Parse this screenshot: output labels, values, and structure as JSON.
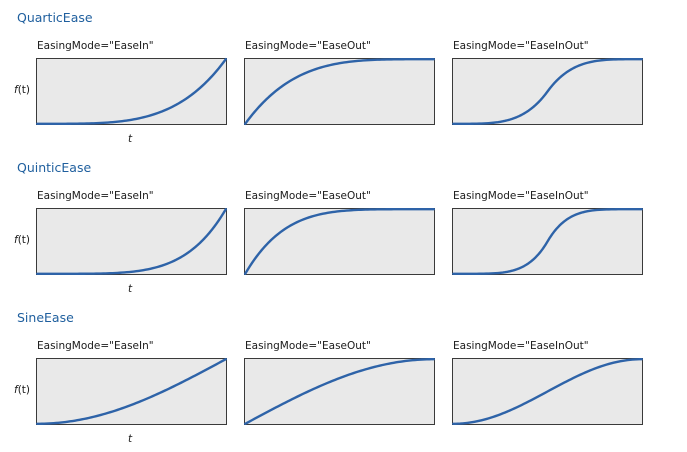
{
  "sections": [
    {
      "title": "QuarticEase",
      "plots": [
        {
          "mode_label": "EasingMode=\"EaseIn\""
        },
        {
          "mode_label": "EasingMode=\"EaseOut\""
        },
        {
          "mode_label": "EasingMode=\"EaseInOut\""
        }
      ],
      "y_label_fn": "f",
      "y_label_arg": "(t)",
      "x_label": "t"
    },
    {
      "title": "QuinticEase",
      "plots": [
        {
          "mode_label": "EasingMode=\"EaseIn\""
        },
        {
          "mode_label": "EasingMode=\"EaseOut\""
        },
        {
          "mode_label": "EasingMode=\"EaseInOut\""
        }
      ],
      "y_label_fn": "f",
      "y_label_arg": "(t)",
      "x_label": "t"
    },
    {
      "title": "SineEase",
      "plots": [
        {
          "mode_label": "EasingMode=\"EaseIn\""
        },
        {
          "mode_label": "EasingMode=\"EaseOut\""
        },
        {
          "mode_label": "EasingMode=\"EaseInOut\""
        }
      ],
      "y_label_fn": "f",
      "y_label_arg": "(t)",
      "x_label": "t"
    }
  ],
  "colors": {
    "title": "#1f5f9e",
    "curve": "#2e63a8",
    "plot_background": "#e9e9e9",
    "plot_border": "#3a3a3a"
  }
}
